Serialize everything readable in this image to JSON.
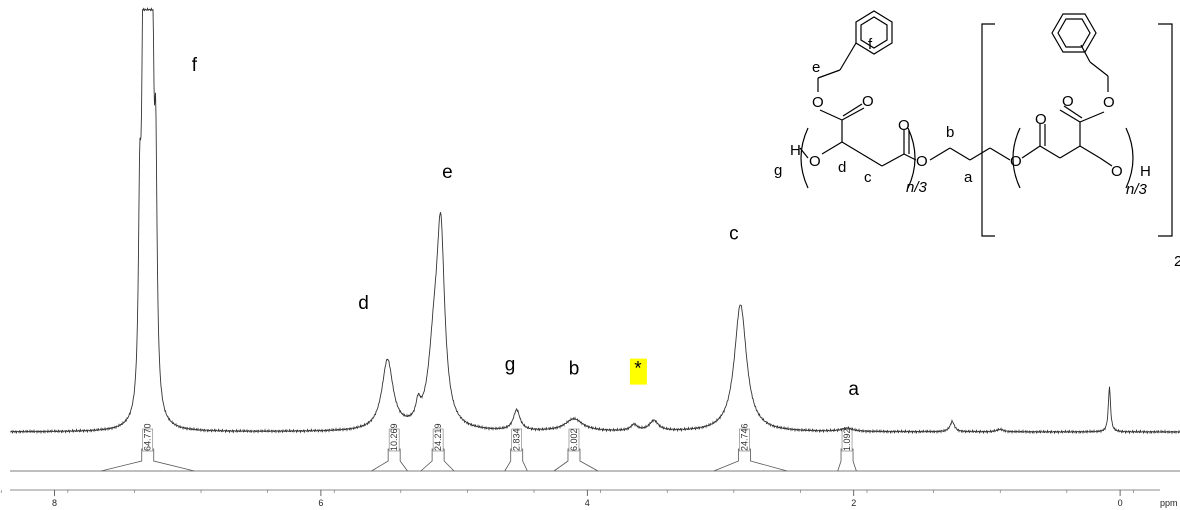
{
  "chart_data": {
    "type": "line",
    "title": "",
    "xlabel": "ppm",
    "ylabel": "",
    "xlim": [
      8.4,
      -0.3
    ],
    "x_reversed": true,
    "xticks": [
      {
        "value": 8,
        "label": "8"
      },
      {
        "value": 6,
        "label": "6"
      },
      {
        "value": 4,
        "label": "4"
      },
      {
        "value": 2,
        "label": "2"
      },
      {
        "value": 0,
        "label": "0"
      }
    ],
    "peaks": [
      {
        "ppm": 7.3,
        "height": 1.0,
        "width": 0.05,
        "shape": "multiplet"
      },
      {
        "ppm": 5.5,
        "height": 0.17,
        "width": 0.05
      },
      {
        "ppm": 5.15,
        "height": 0.18,
        "width": 0.05
      },
      {
        "ppm": 5.1,
        "height": 0.44,
        "width": 0.035
      },
      {
        "ppm": 5.27,
        "height": 0.04,
        "width": 0.02
      },
      {
        "ppm": 4.53,
        "height": 0.05,
        "width": 0.03
      },
      {
        "ppm": 4.1,
        "height": 0.03,
        "width": 0.08
      },
      {
        "ppm": 3.65,
        "height": 0.015,
        "width": 0.03
      },
      {
        "ppm": 3.5,
        "height": 0.025,
        "width": 0.04
      },
      {
        "ppm": 2.85,
        "height": 0.31,
        "width": 0.055
      },
      {
        "ppm": 2.05,
        "height": 0.008,
        "width": 0.05
      },
      {
        "ppm": 1.26,
        "height": 0.025,
        "width": 0.02
      },
      {
        "ppm": 0.9,
        "height": 0.006,
        "width": 0.03
      },
      {
        "ppm": 0.08,
        "height": 0.11,
        "width": 0.01
      }
    ],
    "peak_labels": [
      {
        "label": "f",
        "ppm": 6.95,
        "level": 0.88
      },
      {
        "label": "e",
        "ppm": 5.05,
        "level": 0.62
      },
      {
        "label": "d",
        "ppm": 5.68,
        "level": 0.3
      },
      {
        "label": "g",
        "ppm": 4.58,
        "level": 0.15
      },
      {
        "label": "b",
        "ppm": 4.1,
        "level": 0.14
      },
      {
        "label": "*",
        "ppm": 3.62,
        "level": 0.14,
        "highlight": "#ffff00"
      },
      {
        "label": "c",
        "ppm": 2.9,
        "level": 0.47
      },
      {
        "label": "a",
        "ppm": 2.0,
        "level": 0.09
      }
    ],
    "integrals": [
      {
        "value": "64.770",
        "ppm": 7.3,
        "from": 7.65,
        "to": 6.95
      },
      {
        "value": "10.269",
        "ppm": 5.45,
        "from": 5.62,
        "to": 5.35
      },
      {
        "value": "24.219",
        "ppm": 5.12,
        "from": 5.25,
        "to": 5.0
      },
      {
        "value": "2.834",
        "ppm": 4.53,
        "from": 4.62,
        "to": 4.45
      },
      {
        "value": "6.002",
        "ppm": 4.1,
        "from": 4.25,
        "to": 3.92
      },
      {
        "value": "24.746",
        "ppm": 2.82,
        "from": 3.05,
        "to": 2.5
      },
      {
        "value": "1.092",
        "ppm": 2.05,
        "from": 2.12,
        "to": 1.98
      }
    ]
  },
  "structure": {
    "labels": {
      "f": "f",
      "e": "e",
      "d": "d",
      "c": "c",
      "b": "b",
      "a": "a",
      "g": "g",
      "O": "O",
      "H": "H",
      "n3": "n/3",
      "sub2": "2"
    }
  }
}
